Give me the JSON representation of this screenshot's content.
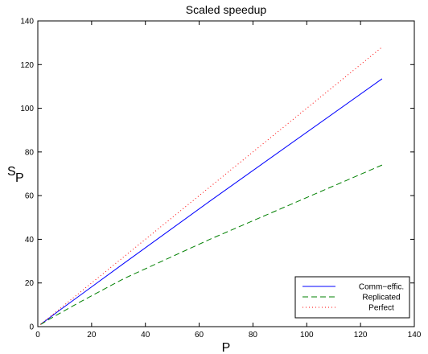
{
  "chart_data": {
    "type": "line",
    "title": "Scaled speedup",
    "xlabel": "P",
    "ylabel": "S",
    "ylabel_sub": "P",
    "xlim": [
      0,
      140
    ],
    "ylim": [
      0,
      140
    ],
    "xticks": [
      0,
      20,
      40,
      60,
      80,
      100,
      120,
      140
    ],
    "yticks": [
      0,
      20,
      40,
      60,
      80,
      100,
      120,
      140
    ],
    "grid": false,
    "legend_position": "bottom-right",
    "series": [
      {
        "name": "Comm−effic.",
        "color": "#0000ff",
        "style": "solid",
        "x": [
          1,
          2,
          4,
          8,
          16,
          32,
          64,
          128
        ],
        "y": [
          1,
          1.9,
          3.7,
          7.4,
          14.6,
          29,
          57.5,
          113.5
        ]
      },
      {
        "name": "Replicated",
        "color": "#008000",
        "style": "dashed",
        "x": [
          1,
          2,
          4,
          8,
          16,
          32,
          64,
          128
        ],
        "y": [
          1,
          1.7,
          3.2,
          6,
          11.5,
          22,
          40,
          74
        ]
      },
      {
        "name": "Perfect",
        "color": "#ff0000",
        "style": "dotted",
        "x": [
          1,
          2,
          4,
          8,
          16,
          32,
          64,
          128
        ],
        "y": [
          1,
          2,
          4,
          8,
          16,
          32,
          64,
          128
        ]
      }
    ]
  }
}
